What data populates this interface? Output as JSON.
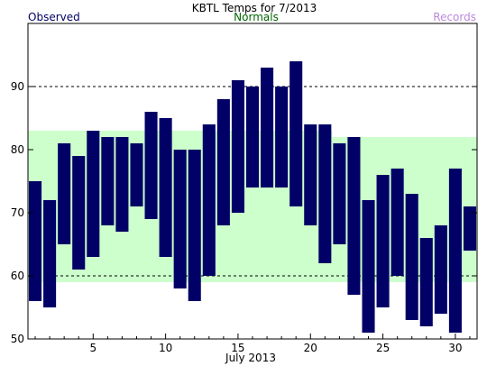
{
  "chart_data": {
    "type": "bar",
    "title": "KBTL Temps for 7/2013",
    "xlabel": "July 2013",
    "ylabel": "",
    "legend": [
      {
        "label": "Observed",
        "color": "#000066"
      },
      {
        "label": "Normals",
        "color": "#006600"
      },
      {
        "label": "Records",
        "color": "#bb88dd"
      }
    ],
    "x_ticks": [
      5,
      10,
      15,
      20,
      25,
      30
    ],
    "y_ticks": [
      50,
      60,
      70,
      80,
      90
    ],
    "xlim": [
      0.5,
      31.5
    ],
    "ylim": [
      50,
      100
    ],
    "grid": "dashed horizontal at 60 and 90",
    "colors": {
      "bars": "#000066",
      "normals_band": "#ccffcc",
      "frame": "#000000"
    },
    "days": [
      1,
      2,
      3,
      4,
      5,
      6,
      7,
      8,
      9,
      10,
      11,
      12,
      13,
      14,
      15,
      16,
      17,
      18,
      19,
      20,
      21,
      22,
      23,
      24,
      25,
      26,
      27,
      28,
      29,
      30,
      31
    ],
    "observed_low": [
      56,
      55,
      65,
      61,
      63,
      68,
      67,
      71,
      69,
      63,
      58,
      56,
      60,
      68,
      70,
      74,
      74,
      74,
      71,
      68,
      62,
      65,
      57,
      51,
      55,
      60,
      53,
      52,
      54,
      51,
      64
    ],
    "observed_high": [
      75,
      72,
      81,
      79,
      83,
      82,
      82,
      81,
      86,
      85,
      80,
      80,
      84,
      88,
      91,
      90,
      93,
      90,
      94,
      84,
      84,
      81,
      82,
      72,
      76,
      77,
      73,
      66,
      68,
      77,
      71
    ],
    "normals": [
      {
        "start_day": 0.5,
        "end_day": 21.5,
        "low": 59,
        "high": 83
      },
      {
        "start_day": 21.5,
        "end_day": 31.5,
        "low": 59,
        "high": 82
      }
    ]
  }
}
